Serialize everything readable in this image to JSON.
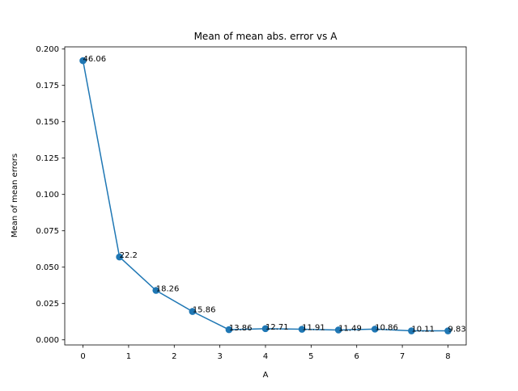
{
  "chart_data": {
    "type": "line",
    "title": "Mean of mean abs. error vs A",
    "xlabel": "A",
    "ylabel": "Mean of mean errors",
    "xlim": [
      -0.4,
      8.4
    ],
    "ylim": [
      -0.0035,
      0.2015
    ],
    "x_ticks": [
      0,
      1,
      2,
      3,
      4,
      5,
      6,
      7,
      8
    ],
    "x_tick_labels": [
      "0",
      "1",
      "2",
      "3",
      "4",
      "5",
      "6",
      "7",
      "8"
    ],
    "y_ticks": [
      0.0,
      0.025,
      0.05,
      0.075,
      0.1,
      0.125,
      0.15,
      0.175,
      0.2
    ],
    "y_tick_labels": [
      "0.000",
      "0.025",
      "0.050",
      "0.075",
      "0.100",
      "0.125",
      "0.150",
      "0.175",
      "0.200"
    ],
    "grid": false,
    "series": [
      {
        "color": "#1f77b4",
        "marker": "circle",
        "x": [
          0,
          0.8,
          1.6,
          2.4,
          3.2,
          4.0,
          4.8,
          5.6,
          6.4,
          7.2,
          8.0
        ],
        "y": [
          0.192,
          0.057,
          0.034,
          0.0195,
          0.007,
          0.0077,
          0.0073,
          0.0068,
          0.0074,
          0.0062,
          0.0062
        ]
      }
    ],
    "point_labels": [
      "46.06",
      "22.2",
      "18.26",
      "15.86",
      "13.86",
      "12.71",
      "11.91",
      "11.49",
      "10.86",
      "10.11",
      "9.83"
    ]
  }
}
